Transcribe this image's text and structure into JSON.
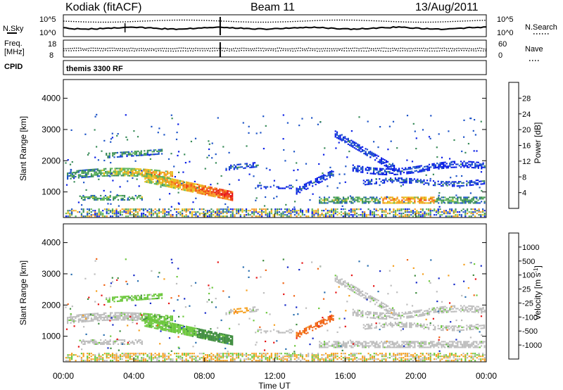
{
  "header": {
    "title": "Kodiak (fitACF)",
    "beam": "Beam 11",
    "date": "13/Aug/2011"
  },
  "top_panels": {
    "nsky_label": "N.Sky",
    "nsky_ticks": [
      "10^5",
      "10^0"
    ],
    "nsky_right_ticks": [
      "10^5",
      "10^0"
    ],
    "nsearch_label": "N.Search",
    "freq_label": "Freq.",
    "freq_unit": "[MHz]",
    "freq_ticks": [
      "18",
      "8"
    ],
    "nave_label": "Nave",
    "nave_ticks": [
      "60",
      "0"
    ],
    "cpid_label": "CPID",
    "cpid_value": "themis 3300 RF"
  },
  "colors": {
    "power_scale": [
      "#0a1ee6",
      "#1e55c8",
      "#3a8c5a",
      "#5fb55a",
      "#e6c21e",
      "#f5961e",
      "#f04b14",
      "#e61414"
    ],
    "velocity_scale": [
      "#1428c8",
      "#2a6fb0",
      "#3e8c3e",
      "#6cc83c",
      "#bdbdbd",
      "#bdbdbd",
      "#f5a01e",
      "#f06414",
      "#e61414"
    ]
  },
  "chart_data": [
    {
      "type": "heatmap",
      "name": "power",
      "ylabel": "Slant Range [km]",
      "xlabel": "",
      "xlim": [
        "00:00",
        "24:00"
      ],
      "ylim": [
        180,
        4600
      ],
      "yticks": [
        "1000",
        "2000",
        "3000",
        "4000"
      ],
      "colorbar": {
        "label": "Power [dB]",
        "range": [
          0,
          32
        ],
        "ticks": [
          "4",
          "8",
          "12",
          "16",
          "20",
          "24",
          "28"
        ]
      },
      "features": [
        {
          "t_start": 0.0,
          "t_end": 9.6,
          "range_start": 700,
          "range_end": 1800,
          "peak_dB": 30
        },
        {
          "t_start": 15.4,
          "t_end": 24.0,
          "range_start": 1300,
          "range_end": 3000,
          "peak_dB": 10
        },
        {
          "t_start": 16.0,
          "t_end": 24.0,
          "range_start": 600,
          "range_end": 900,
          "peak_dB": 26
        }
      ]
    },
    {
      "type": "heatmap",
      "name": "velocity",
      "ylabel": "Slant Range [km]",
      "xlabel": "Time UT",
      "xticks": [
        "00:00",
        "04:00",
        "08:00",
        "12:00",
        "16:00",
        "20:00",
        "00:00"
      ],
      "ylim": [
        180,
        4600
      ],
      "yticks": [
        "1000",
        "2000",
        "3000",
        "4000"
      ],
      "colorbar": {
        "label": "Velocity [m s^-1]",
        "ticks": [
          "1000",
          "500",
          "100",
          "25",
          "-25",
          "-100",
          "-500",
          "-1000"
        ]
      },
      "features": [
        {
          "t_start": 4.4,
          "t_end": 8.6,
          "range_start": 1200,
          "range_end": 2500,
          "velocity": 100
        },
        {
          "t_start": 13.7,
          "t_end": 15.3,
          "range_start": 1000,
          "range_end": 1800,
          "velocity": -500
        },
        {
          "t_start": 0.0,
          "t_end": 24.0,
          "range_start": 700,
          "range_end": 1800,
          "velocity": 0
        }
      ]
    }
  ]
}
